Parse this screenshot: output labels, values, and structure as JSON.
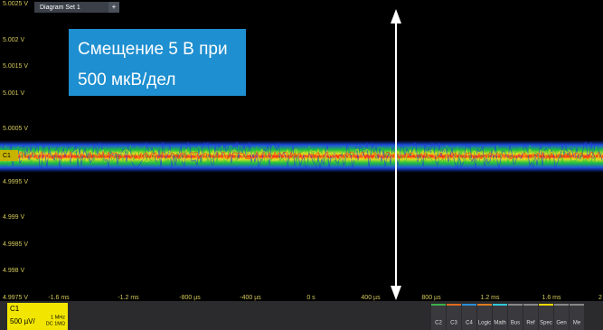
{
  "tab": {
    "title": "Diagram Set 1",
    "add": "+"
  },
  "y_labels": [
    "5.0025 V",
    "5.002 V",
    "5.0015 V",
    "5.001 V",
    "5.0005 V",
    "4.9995 V",
    "4.999 V",
    "4.9985 V",
    "4.998 V",
    "4.9975 V"
  ],
  "x_labels": [
    "-1.6 ms",
    "-1.2 ms",
    "-800 µs",
    "-400 µs",
    "0 s",
    "400 µs",
    "800 µs",
    "1.2 ms",
    "1.6 ms",
    "2"
  ],
  "trace_marker": "C1",
  "annotation": {
    "line1": "Смещение 5 В при",
    "line2": "500 мкВ/дел"
  },
  "channel": {
    "name": "C1",
    "scale": "500 µV/",
    "bandwidth": "1 MHz",
    "coupling": "DC 1MΩ"
  },
  "toolbar": [
    "C2",
    "C3",
    "C4",
    "Logic",
    "Math",
    "Bus",
    "Ref",
    "Spec",
    "Gen",
    "Me"
  ]
}
